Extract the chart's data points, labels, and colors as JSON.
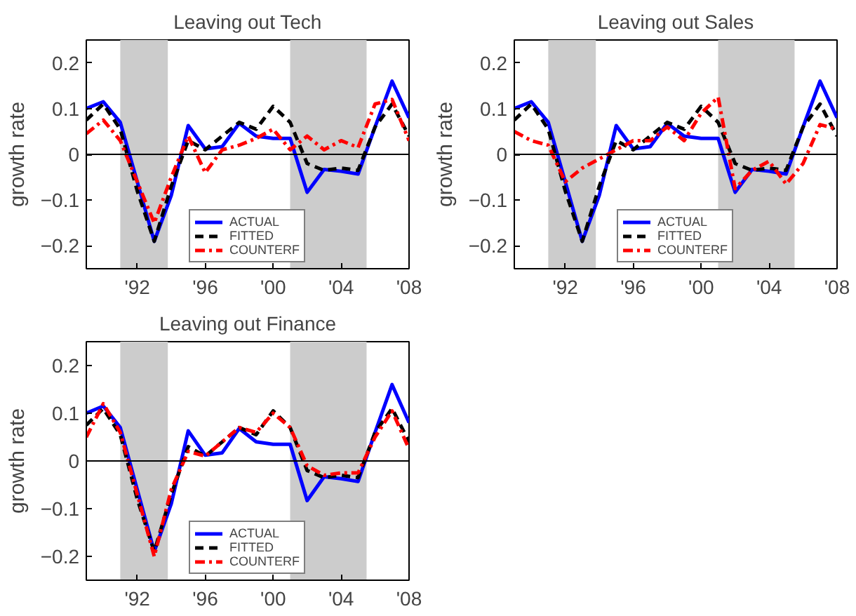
{
  "chart_data": [
    {
      "type": "line",
      "title": "Leaving out Tech",
      "ylabel": "growth rate",
      "x": [
        1989,
        1990,
        1991,
        1992,
        1993,
        1994,
        1995,
        1996,
        1997,
        1998,
        1999,
        2000,
        2001,
        2002,
        2003,
        2004,
        2005,
        2006,
        2007,
        2008
      ],
      "series": [
        {
          "name": "ACTUAL",
          "color": "#0000ff",
          "line_style": "solid",
          "values": [
            0.1,
            0.115,
            0.07,
            -0.06,
            -0.19,
            -0.09,
            0.063,
            0.012,
            0.017,
            0.068,
            0.04,
            0.035,
            0.035,
            -0.083,
            -0.033,
            -0.037,
            -0.043,
            0.06,
            0.16,
            0.08
          ]
        },
        {
          "name": "FITTED",
          "color": "#000000",
          "line_style": "dashed",
          "values": [
            0.075,
            0.11,
            0.055,
            -0.08,
            -0.19,
            -0.07,
            0.03,
            0.01,
            0.04,
            0.07,
            0.055,
            0.105,
            0.07,
            -0.02,
            -0.035,
            -0.03,
            -0.035,
            0.06,
            0.11,
            0.04
          ]
        },
        {
          "name": "COUNTERF",
          "color": "#ff0000",
          "line_style": "dashdot",
          "values": [
            0.045,
            0.075,
            0.03,
            -0.06,
            -0.15,
            -0.05,
            0.04,
            -0.04,
            0.01,
            0.02,
            0.035,
            0.055,
            0.01,
            0.04,
            0.01,
            0.03,
            0.015,
            0.11,
            0.12,
            0.03
          ]
        }
      ],
      "xlim": [
        1989,
        2008
      ],
      "ylim": [
        -0.25,
        0.25
      ],
      "xticks": [
        {
          "value": 1992,
          "label": "'92"
        },
        {
          "value": 1996,
          "label": "'96"
        },
        {
          "value": 2000,
          "label": "'00"
        },
        {
          "value": 2004,
          "label": "'04"
        },
        {
          "value": 2008,
          "label": "'08"
        }
      ],
      "yticks": [
        -0.2,
        -0.1,
        0,
        0.1,
        0.2
      ],
      "bands": [
        {
          "axis": "x",
          "from": 1991,
          "to": 1993.8,
          "color": "#cccccc"
        },
        {
          "axis": "x",
          "from": 2001,
          "to": 2005.5,
          "color": "#cccccc"
        }
      ],
      "ref_lines": [
        {
          "axis": "y",
          "value": 0,
          "color": "#000000"
        }
      ],
      "legend": "bottom",
      "grid": false,
      "marker": "none"
    },
    {
      "type": "line",
      "title": "Leaving out Sales",
      "ylabel": "growth rate",
      "x": [
        1989,
        1990,
        1991,
        1992,
        1993,
        1994,
        1995,
        1996,
        1997,
        1998,
        1999,
        2000,
        2001,
        2002,
        2003,
        2004,
        2005,
        2006,
        2007,
        2008
      ],
      "series": [
        {
          "name": "ACTUAL",
          "color": "#0000ff",
          "line_style": "solid",
          "values": [
            0.1,
            0.115,
            0.07,
            -0.06,
            -0.19,
            -0.09,
            0.063,
            0.012,
            0.017,
            0.068,
            0.04,
            0.035,
            0.035,
            -0.083,
            -0.033,
            -0.037,
            -0.043,
            0.06,
            0.16,
            0.08
          ]
        },
        {
          "name": "FITTED",
          "color": "#000000",
          "line_style": "dashed",
          "values": [
            0.075,
            0.11,
            0.055,
            -0.08,
            -0.19,
            -0.07,
            0.03,
            0.01,
            0.04,
            0.07,
            0.055,
            0.105,
            0.07,
            -0.02,
            -0.035,
            -0.03,
            -0.035,
            0.06,
            0.11,
            0.04
          ]
        },
        {
          "name": "COUNTERF",
          "color": "#ff0000",
          "line_style": "dashdot",
          "values": [
            0.05,
            0.03,
            0.02,
            -0.06,
            -0.03,
            -0.01,
            0.01,
            0.03,
            0.03,
            0.06,
            0.03,
            0.09,
            0.125,
            -0.075,
            -0.035,
            -0.015,
            -0.065,
            -0.02,
            0.065,
            0.055
          ]
        }
      ],
      "xlim": [
        1989,
        2008
      ],
      "ylim": [
        -0.25,
        0.25
      ],
      "xticks": [
        {
          "value": 1992,
          "label": "'92"
        },
        {
          "value": 1996,
          "label": "'96"
        },
        {
          "value": 2000,
          "label": "'00"
        },
        {
          "value": 2004,
          "label": "'04"
        },
        {
          "value": 2008,
          "label": "'08"
        }
      ],
      "yticks": [
        -0.2,
        -0.1,
        0,
        0.1,
        0.2
      ],
      "bands": [
        {
          "axis": "x",
          "from": 1991,
          "to": 1993.8,
          "color": "#cccccc"
        },
        {
          "axis": "x",
          "from": 2001,
          "to": 2005.5,
          "color": "#cccccc"
        }
      ],
      "ref_lines": [
        {
          "axis": "y",
          "value": 0,
          "color": "#000000"
        }
      ],
      "legend": "bottom",
      "grid": false,
      "marker": "none"
    },
    {
      "type": "line",
      "title": "Leaving out Finance",
      "ylabel": "growth rate",
      "x": [
        1989,
        1990,
        1991,
        1992,
        1993,
        1994,
        1995,
        1996,
        1997,
        1998,
        1999,
        2000,
        2001,
        2002,
        2003,
        2004,
        2005,
        2006,
        2007,
        2008
      ],
      "series": [
        {
          "name": "ACTUAL",
          "color": "#0000ff",
          "line_style": "solid",
          "values": [
            0.1,
            0.115,
            0.07,
            -0.06,
            -0.19,
            -0.09,
            0.063,
            0.012,
            0.017,
            0.068,
            0.04,
            0.035,
            0.035,
            -0.083,
            -0.033,
            -0.037,
            -0.043,
            0.06,
            0.16,
            0.08
          ]
        },
        {
          "name": "FITTED",
          "color": "#000000",
          "line_style": "dashed",
          "values": [
            0.075,
            0.11,
            0.055,
            -0.08,
            -0.19,
            -0.07,
            0.03,
            0.01,
            0.04,
            0.07,
            0.055,
            0.105,
            0.07,
            -0.02,
            -0.035,
            -0.03,
            -0.035,
            0.06,
            0.11,
            0.04
          ]
        },
        {
          "name": "COUNTERF",
          "color": "#ff0000",
          "line_style": "dashdot",
          "values": [
            0.05,
            0.12,
            0.06,
            -0.07,
            -0.2,
            -0.06,
            0.02,
            0.01,
            0.04,
            0.07,
            0.06,
            0.1,
            0.07,
            -0.01,
            -0.03,
            -0.025,
            -0.025,
            0.05,
            0.105,
            0.025
          ]
        }
      ],
      "xlim": [
        1989,
        2008
      ],
      "ylim": [
        -0.25,
        0.25
      ],
      "xticks": [
        {
          "value": 1992,
          "label": "'92"
        },
        {
          "value": 1996,
          "label": "'96"
        },
        {
          "value": 2000,
          "label": "'00"
        },
        {
          "value": 2004,
          "label": "'04"
        },
        {
          "value": 2008,
          "label": "'08"
        }
      ],
      "yticks": [
        -0.2,
        -0.1,
        0,
        0.1,
        0.2
      ],
      "bands": [
        {
          "axis": "x",
          "from": 1991,
          "to": 1993.8,
          "color": "#cccccc"
        },
        {
          "axis": "x",
          "from": 2001,
          "to": 2005.5,
          "color": "#cccccc"
        }
      ],
      "ref_lines": [
        {
          "axis": "y",
          "value": 0,
          "color": "#000000"
        }
      ],
      "legend": "bottom",
      "grid": false,
      "marker": "none"
    }
  ]
}
